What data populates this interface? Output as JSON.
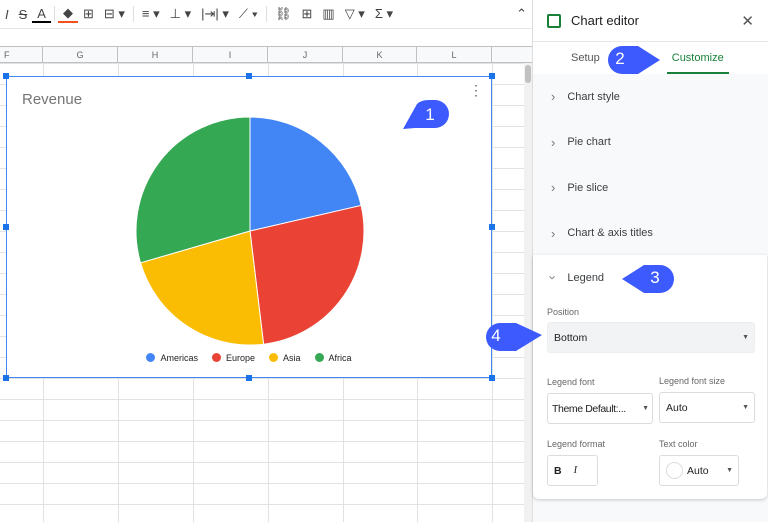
{
  "toolbar": {
    "icons": [
      "italic-icon",
      "strikethrough-icon",
      "text-color-icon",
      "fill-color-icon",
      "borders-icon",
      "merge-icon",
      "align-icon",
      "valign-icon",
      "wrap-icon",
      "rotate-icon",
      "link-icon",
      "comment-icon",
      "chart-icon",
      "filter-icon",
      "functions-icon",
      "collapse-icon"
    ]
  },
  "columns": [
    "F",
    "G",
    "H",
    "I",
    "J",
    "K",
    "L"
  ],
  "chart": {
    "title": "Revenue",
    "legend_position": "bottom",
    "chart_data": {
      "type": "pie",
      "title": "Revenue",
      "categories": [
        "Americas",
        "Europe",
        "Asia",
        "Africa"
      ],
      "values": [
        21.4,
        26.7,
        22.4,
        29.5
      ],
      "colors": [
        "#4285f4",
        "#ea4335",
        "#fbbc04",
        "#34a853"
      ],
      "legend": "bottom"
    }
  },
  "panel": {
    "title": "Chart editor",
    "tabs": [
      "Setup",
      "Customize"
    ],
    "active_tab": "Customize",
    "sections": [
      "Chart style",
      "Pie chart",
      "Pie slice",
      "Chart & axis titles"
    ],
    "legend": {
      "title": "Legend",
      "position_label": "Position",
      "position_value": "Bottom",
      "font_label": "Legend font",
      "font_value": "Theme Default:...",
      "font_size_label": "Legend font size",
      "font_size_value": "Auto",
      "format_label": "Legend format",
      "bold": "B",
      "italic": "I",
      "text_color_label": "Text color",
      "text_color_value": "Auto"
    }
  },
  "callouts": [
    "1",
    "2",
    "3",
    "4"
  ],
  "callout_color": "#3d5afe"
}
